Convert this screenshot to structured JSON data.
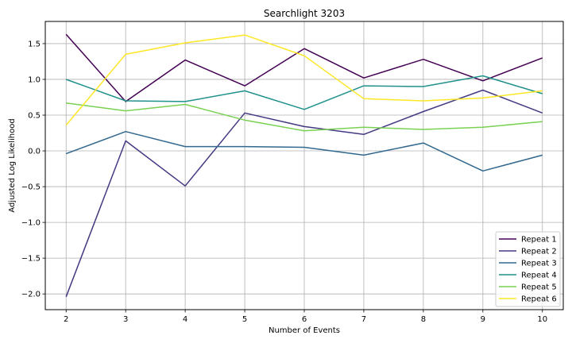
{
  "chart_data": {
    "type": "line",
    "title": "Searchlight 3203",
    "xlabel": "Number of Events",
    "ylabel": "Adjusted Log Likelihood",
    "x": [
      2,
      3,
      4,
      5,
      6,
      7,
      8,
      9,
      10
    ],
    "xlim": [
      1.65,
      10.35
    ],
    "ylim": [
      -2.22,
      1.81
    ],
    "xticks": [
      2,
      3,
      4,
      5,
      6,
      7,
      8,
      9,
      10
    ],
    "yticks": [
      -2.0,
      -1.5,
      -1.0,
      -0.5,
      0.0,
      0.5,
      1.0,
      1.5
    ],
    "ytick_labels": [
      "−2.0",
      "−1.5",
      "−1.0",
      "−0.5",
      "0.0",
      "0.5",
      "1.0",
      "1.5"
    ],
    "grid": true,
    "legend_position": "lower-right",
    "series": [
      {
        "name": "Repeat 1",
        "color": "#440154",
        "values": [
          1.63,
          0.69,
          1.27,
          0.91,
          1.43,
          1.02,
          1.28,
          0.98,
          1.3
        ]
      },
      {
        "name": "Repeat 2",
        "color": "#443983",
        "values": [
          -2.04,
          0.14,
          -0.49,
          0.53,
          0.34,
          0.23,
          0.55,
          0.85,
          0.53
        ]
      },
      {
        "name": "Repeat 3",
        "color": "#31688e",
        "values": [
          -0.04,
          0.27,
          0.06,
          0.06,
          0.05,
          -0.06,
          0.11,
          -0.28,
          -0.06
        ]
      },
      {
        "name": "Repeat 4",
        "color": "#21918c",
        "values": [
          1.0,
          0.7,
          0.69,
          0.84,
          0.58,
          0.91,
          0.9,
          1.05,
          0.8
        ]
      },
      {
        "name": "Repeat 5",
        "color": "#7ad151",
        "values": [
          0.67,
          0.56,
          0.65,
          0.43,
          0.28,
          0.33,
          0.3,
          0.33,
          0.41
        ]
      },
      {
        "name": "Repeat 6",
        "color": "#fde725",
        "values": [
          0.36,
          1.35,
          1.51,
          1.62,
          1.33,
          0.73,
          0.7,
          0.74,
          0.84
        ]
      }
    ]
  }
}
